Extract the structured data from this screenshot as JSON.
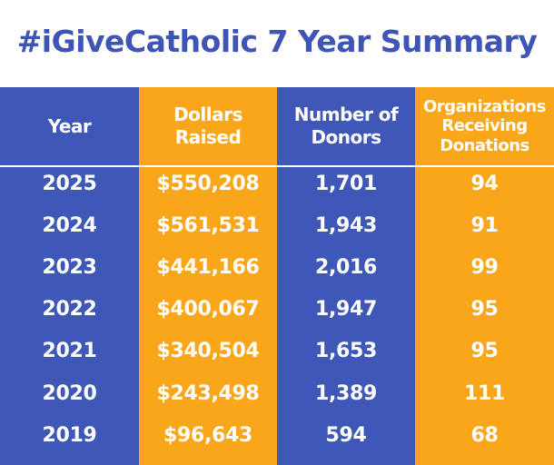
{
  "header": {
    "title": "#iGiveCatholic 7 Year Summary"
  },
  "table": {
    "columns": [
      "Year",
      "Dollars Raised",
      "Number of Donors",
      "Organizations Receiving Donations"
    ],
    "rows": [
      [
        "2025",
        "$550,208",
        "1,701",
        "94"
      ],
      [
        "2024",
        "$561,531",
        "1,943",
        "91"
      ],
      [
        "2023",
        "$441,166",
        "2,016",
        "99"
      ],
      [
        "2022",
        "$400,067",
        "1,947",
        "95"
      ],
      [
        "2021",
        "$340,504",
        "1,653",
        "95"
      ],
      [
        "2020",
        "$243,498",
        "1,389",
        "111"
      ],
      [
        "2019",
        "$96,643",
        "594",
        "68"
      ]
    ]
  }
}
